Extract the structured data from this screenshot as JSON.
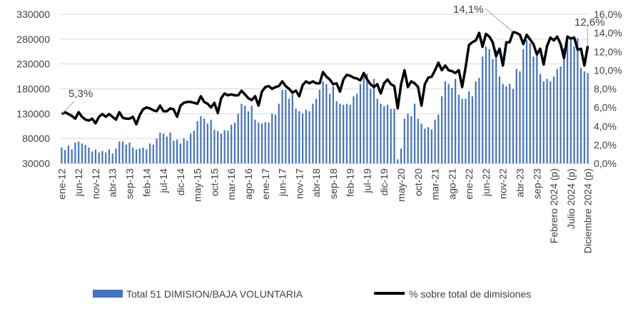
{
  "chart_data": {
    "type": "bar+line",
    "title": "",
    "left_axis": {
      "ylim": [
        30000,
        330000
      ],
      "ticks": [
        "30000",
        "80000",
        "130000",
        "180000",
        "230000",
        "280000",
        "330000"
      ]
    },
    "right_axis": {
      "ylim": [
        0,
        16
      ],
      "ticks": [
        "0,0%",
        "2,0%",
        "4,0%",
        "6,0%",
        "8,0%",
        "10,0%",
        "12,0%",
        "14,0%",
        "16,0%"
      ]
    },
    "grid": true,
    "legend_position": "bottom",
    "x_tick_labels": [
      "ene-12",
      "jun-12",
      "nov-12",
      "abr-13",
      "sep-13",
      "feb-14",
      "jul-14",
      "dic-14",
      "may-15",
      "oct-15",
      "mar-16",
      "ago-16",
      "ene-17",
      "jun-17",
      "nov-17",
      "abr-18",
      "sep-18",
      "feb-19",
      "jul-19",
      "dic-19",
      "may-20",
      "oct-20",
      "mar-21",
      "ago-21",
      "ene-22",
      "jun-22",
      "nov-22",
      "abr-23",
      "sep-23",
      "Febrero 2024 (p)",
      "Julio 2024 (p)",
      "Diciembre 2024 (p)"
    ],
    "x_tick_every": 5,
    "series": [
      {
        "name": "Total 51 DIMISION/BAJA VOLUNTARIA",
        "type": "bar",
        "axis": "left",
        "color": "#4472C4",
        "values": [
          62000,
          57000,
          66000,
          58000,
          72000,
          74000,
          70000,
          67000,
          62000,
          54000,
          58000,
          52000,
          55000,
          52000,
          58000,
          50000,
          60000,
          74000,
          74000,
          68000,
          72000,
          62000,
          58000,
          60000,
          62000,
          58000,
          70000,
          68000,
          80000,
          92000,
          90000,
          84000,
          92000,
          76000,
          78000,
          70000,
          80000,
          76000,
          90000,
          96000,
          115000,
          125000,
          120000,
          110000,
          118000,
          98000,
          95000,
          90000,
          97000,
          96000,
          108000,
          112000,
          130000,
          150000,
          146000,
          135000,
          146000,
          118000,
          112000,
          110000,
          113000,
          112000,
          130000,
          128000,
          150000,
          178000,
          178000,
          160000,
          170000,
          140000,
          135000,
          130000,
          138000,
          135000,
          150000,
          160000,
          178000,
          195000,
          190000,
          170000,
          185000,
          155000,
          150000,
          148000,
          150000,
          148000,
          165000,
          170000,
          190000,
          205000,
          210000,
          180000,
          200000,
          160000,
          150000,
          145000,
          148000,
          140000,
          140000,
          38000,
          60000,
          120000,
          130000,
          125000,
          150000,
          120000,
          110000,
          100000,
          103000,
          98000,
          118000,
          128000,
          165000,
          195000,
          190000,
          182000,
          200000,
          168000,
          160000,
          160000,
          175000,
          165000,
          195000,
          202000,
          245000,
          265000,
          260000,
          240000,
          258000,
          205000,
          190000,
          185000,
          190000,
          180000,
          220000,
          215000,
          260000,
          278000,
          272000,
          245000,
          255000,
          210000,
          195000,
          200000,
          195000,
          205000,
          220000,
          225000,
          262000,
          285000,
          282000,
          265000,
          282000,
          222000,
          215000,
          212000
        ]
      },
      {
        "name": "% sobre total de dimisiones",
        "type": "line",
        "axis": "right",
        "color": "#000000",
        "values": [
          5.3,
          5.5,
          5.3,
          5.1,
          4.8,
          5.5,
          5.0,
          4.7,
          4.6,
          4.8,
          4.3,
          5.0,
          5.3,
          5.0,
          5.3,
          5.0,
          4.7,
          5.5,
          4.9,
          4.8,
          4.8,
          5.0,
          4.2,
          5.2,
          5.8,
          6.0,
          5.9,
          5.7,
          5.6,
          6.2,
          5.6,
          5.6,
          5.9,
          5.8,
          5.0,
          6.2,
          6.5,
          6.6,
          6.6,
          6.5,
          6.4,
          7.2,
          6.6,
          6.4,
          6.0,
          6.5,
          5.4,
          7.0,
          7.5,
          7.3,
          7.4,
          7.3,
          7.3,
          7.8,
          7.4,
          7.0,
          6.8,
          7.2,
          6.2,
          7.7,
          8.2,
          8.3,
          8.0,
          8.2,
          8.3,
          8.8,
          8.3,
          8.0,
          7.6,
          7.8,
          7.2,
          8.4,
          8.8,
          8.6,
          8.8,
          8.6,
          8.6,
          9.8,
          9.3,
          9.0,
          8.5,
          8.6,
          7.7,
          9.0,
          9.5,
          9.4,
          9.2,
          9.1,
          8.9,
          9.7,
          9.0,
          8.5,
          8.2,
          8.5,
          7.5,
          8.6,
          9.0,
          8.5,
          8.3,
          5.9,
          8.5,
          10.0,
          8.2,
          8.8,
          8.6,
          8.2,
          6.2,
          8.5,
          9.2,
          9.3,
          10.0,
          10.8,
          10.0,
          10.5,
          10.0,
          9.9,
          9.7,
          10.0,
          8.2,
          10.3,
          12.7,
          13.0,
          13.2,
          14.0,
          12.5,
          13.9,
          13.6,
          13.0,
          11.5,
          12.3,
          10.5,
          13.0,
          13.0,
          14.1,
          14.0,
          13.8,
          12.8,
          13.8,
          13.3,
          12.8,
          11.7,
          12.3,
          10.6,
          12.6,
          13.5,
          13.2,
          13.6,
          12.8,
          11.3,
          13.6,
          13.4,
          13.5,
          12.2,
          12.3,
          10.5,
          12.6
        ]
      }
    ],
    "annotations": [
      {
        "text": "5,3%",
        "index": 0
      },
      {
        "text": "14,1%",
        "index": 133
      },
      {
        "text": "12,6%",
        "index": 155
      }
    ]
  }
}
